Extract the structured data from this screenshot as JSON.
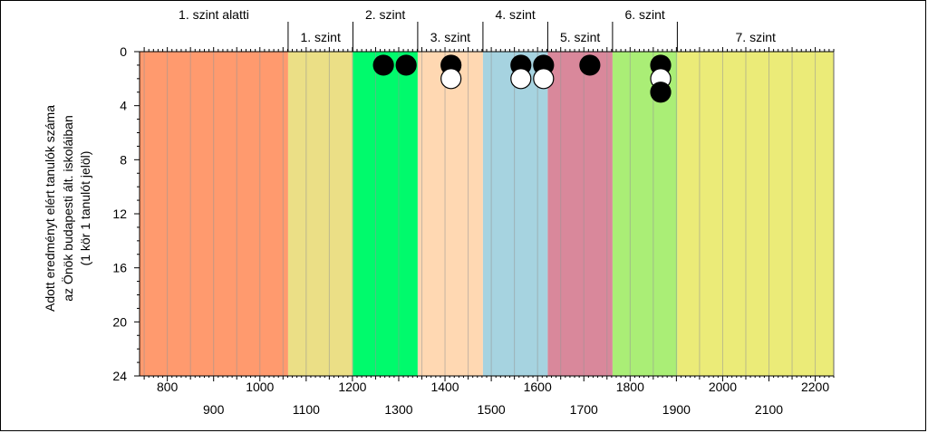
{
  "chart_data": {
    "type": "scatter",
    "ylabel": [
      "Adott eredményt elért tanulók száma",
      "az Önök budapesti ált. iskoláiban",
      "(1 kör 1 tanulót jelöl)"
    ],
    "xlim": [
      740,
      2240
    ],
    "ylim": [
      0,
      24
    ],
    "y_reversed": true,
    "y_ticks": [
      0,
      4,
      8,
      12,
      16,
      20,
      24
    ],
    "x_ticks_upper_row": [
      800,
      1000,
      1200,
      1400,
      1600,
      1800,
      2000,
      2200
    ],
    "x_ticks_lower_row": [
      900,
      1100,
      1300,
      1500,
      1700,
      1900,
      2100
    ],
    "x_minor_step": 50,
    "levels": [
      {
        "label": "1. szint alatti",
        "from": 740,
        "to": 1061,
        "color": "#FF9A6E",
        "label_row": "top"
      },
      {
        "label": "1. szint",
        "from": 1061,
        "to": 1201,
        "color": "#EBDF86",
        "label_row": "bottom"
      },
      {
        "label": "2. szint",
        "from": 1201,
        "to": 1341,
        "color": "#00FA6C",
        "label_row": "top"
      },
      {
        "label": "3. szint",
        "from": 1341,
        "to": 1482,
        "color": "#FFD8B2",
        "label_row": "bottom"
      },
      {
        "label": "4. szint",
        "from": 1482,
        "to": 1622,
        "color": "#A6D3E0",
        "label_row": "top"
      },
      {
        "label": "5. szint",
        "from": 1622,
        "to": 1762,
        "color": "#D9889B",
        "label_row": "bottom"
      },
      {
        "label": "6. szint",
        "from": 1762,
        "to": 1902,
        "color": "#AAEE76",
        "label_row": "top"
      },
      {
        "label": "7. szint",
        "from": 1902,
        "to": 2240,
        "color": "#EBEB78",
        "label_row": "bottom"
      }
    ],
    "points": [
      {
        "x": 1267,
        "y": 1,
        "fill": "black"
      },
      {
        "x": 1316,
        "y": 1,
        "fill": "black"
      },
      {
        "x": 1413,
        "y": 1,
        "fill": "black"
      },
      {
        "x": 1413,
        "y": 2,
        "fill": "white"
      },
      {
        "x": 1564,
        "y": 1,
        "fill": "black"
      },
      {
        "x": 1564,
        "y": 2,
        "fill": "white"
      },
      {
        "x": 1613,
        "y": 1,
        "fill": "black"
      },
      {
        "x": 1613,
        "y": 2,
        "fill": "white"
      },
      {
        "x": 1713,
        "y": 1,
        "fill": "black"
      },
      {
        "x": 1866,
        "y": 1,
        "fill": "black"
      },
      {
        "x": 1866,
        "y": 2,
        "fill": "white"
      },
      {
        "x": 1866,
        "y": 3,
        "fill": "black"
      }
    ]
  }
}
